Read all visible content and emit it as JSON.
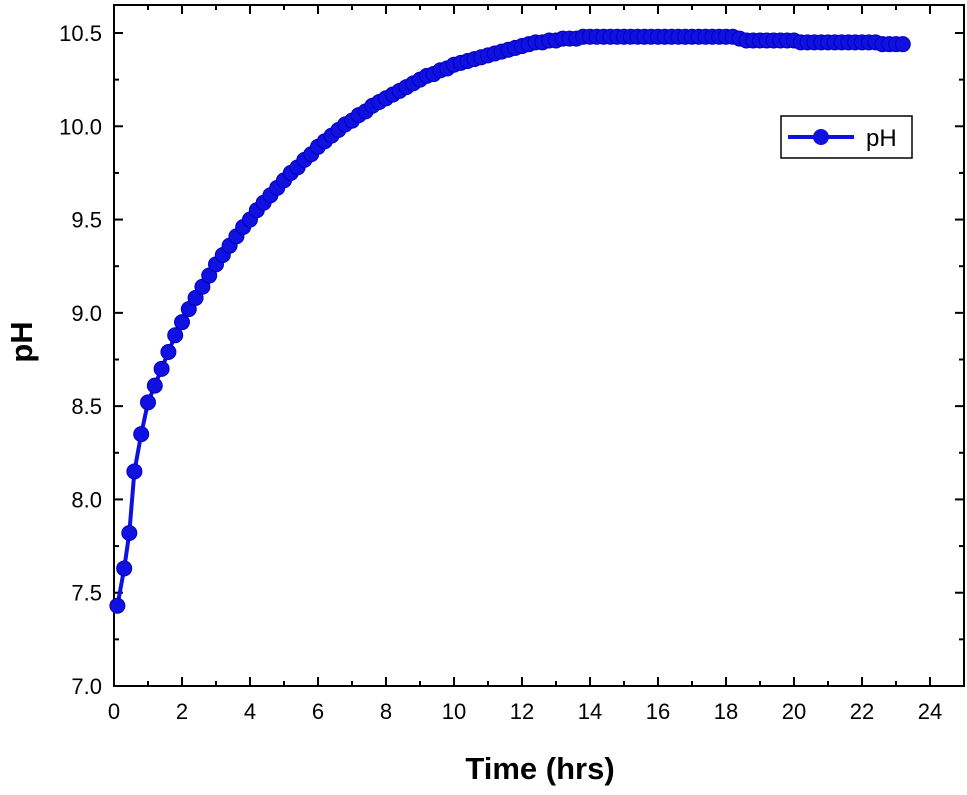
{
  "chart_data": {
    "type": "line",
    "title": "",
    "xlabel": "Time (hrs)",
    "ylabel": "pH",
    "xlim": [
      0,
      25
    ],
    "ylim": [
      7.0,
      10.65
    ],
    "xticks": [
      "0",
      "2",
      "4",
      "6",
      "8",
      "10",
      "12",
      "14",
      "16",
      "18",
      "20",
      "22",
      "24"
    ],
    "yticks": [
      "7.0",
      "7.5",
      "8.0",
      "8.5",
      "9.0",
      "9.5",
      "10.0",
      "10.5"
    ],
    "grid": false,
    "legend_position": "top-right",
    "series": [
      {
        "name": "pH",
        "color": "#1010e0",
        "marker": "circle",
        "x": [
          0.1,
          0.3,
          0.45,
          0.6,
          0.8,
          1.0,
          1.2,
          1.4,
          1.6,
          1.8,
          2.0,
          2.2,
          2.4,
          2.6,
          2.8,
          3.0,
          3.2,
          3.4,
          3.6,
          3.8,
          4.0,
          4.2,
          4.4,
          4.6,
          4.8,
          5.0,
          5.2,
          5.4,
          5.6,
          5.8,
          6.0,
          6.2,
          6.4,
          6.6,
          6.8,
          7.0,
          7.2,
          7.4,
          7.6,
          7.8,
          8.0,
          8.2,
          8.4,
          8.6,
          8.8,
          9.0,
          9.2,
          9.4,
          9.6,
          9.8,
          10.0,
          10.2,
          10.4,
          10.6,
          10.8,
          11.0,
          11.2,
          11.4,
          11.6,
          11.8,
          12.0,
          12.2,
          12.4,
          12.6,
          12.8,
          13.0,
          13.2,
          13.4,
          13.6,
          13.8,
          14.0,
          14.2,
          14.4,
          14.6,
          14.8,
          15.0,
          15.2,
          15.4,
          15.6,
          15.8,
          16.0,
          16.2,
          16.4,
          16.6,
          16.8,
          17.0,
          17.2,
          17.4,
          17.6,
          17.8,
          18.0,
          18.2,
          18.4,
          18.6,
          18.8,
          19.0,
          19.2,
          19.4,
          19.6,
          19.8,
          20.0,
          20.2,
          20.4,
          20.6,
          20.8,
          21.0,
          21.2,
          21.4,
          21.6,
          21.8,
          22.0,
          22.2,
          22.4,
          22.6,
          22.8,
          23.0,
          23.2
        ],
        "y": [
          7.43,
          7.63,
          7.82,
          8.15,
          8.35,
          8.52,
          8.61,
          8.7,
          8.79,
          8.88,
          8.95,
          9.02,
          9.08,
          9.14,
          9.2,
          9.26,
          9.31,
          9.36,
          9.41,
          9.46,
          9.5,
          9.55,
          9.59,
          9.63,
          9.67,
          9.71,
          9.75,
          9.78,
          9.82,
          9.85,
          9.89,
          9.92,
          9.95,
          9.98,
          10.01,
          10.03,
          10.06,
          10.08,
          10.11,
          10.13,
          10.15,
          10.17,
          10.19,
          10.21,
          10.23,
          10.25,
          10.27,
          10.28,
          10.3,
          10.31,
          10.33,
          10.34,
          10.35,
          10.36,
          10.37,
          10.38,
          10.39,
          10.4,
          10.41,
          10.42,
          10.43,
          10.44,
          10.45,
          10.45,
          10.46,
          10.46,
          10.47,
          10.47,
          10.47,
          10.48,
          10.48,
          10.48,
          10.48,
          10.48,
          10.48,
          10.48,
          10.48,
          10.48,
          10.48,
          10.48,
          10.48,
          10.48,
          10.48,
          10.48,
          10.48,
          10.48,
          10.48,
          10.48,
          10.48,
          10.48,
          10.48,
          10.48,
          10.47,
          10.46,
          10.46,
          10.46,
          10.46,
          10.46,
          10.46,
          10.46,
          10.46,
          10.45,
          10.45,
          10.45,
          10.45,
          10.45,
          10.45,
          10.45,
          10.45,
          10.45,
          10.45,
          10.45,
          10.45,
          10.44,
          10.44,
          10.44,
          10.44
        ]
      }
    ]
  }
}
